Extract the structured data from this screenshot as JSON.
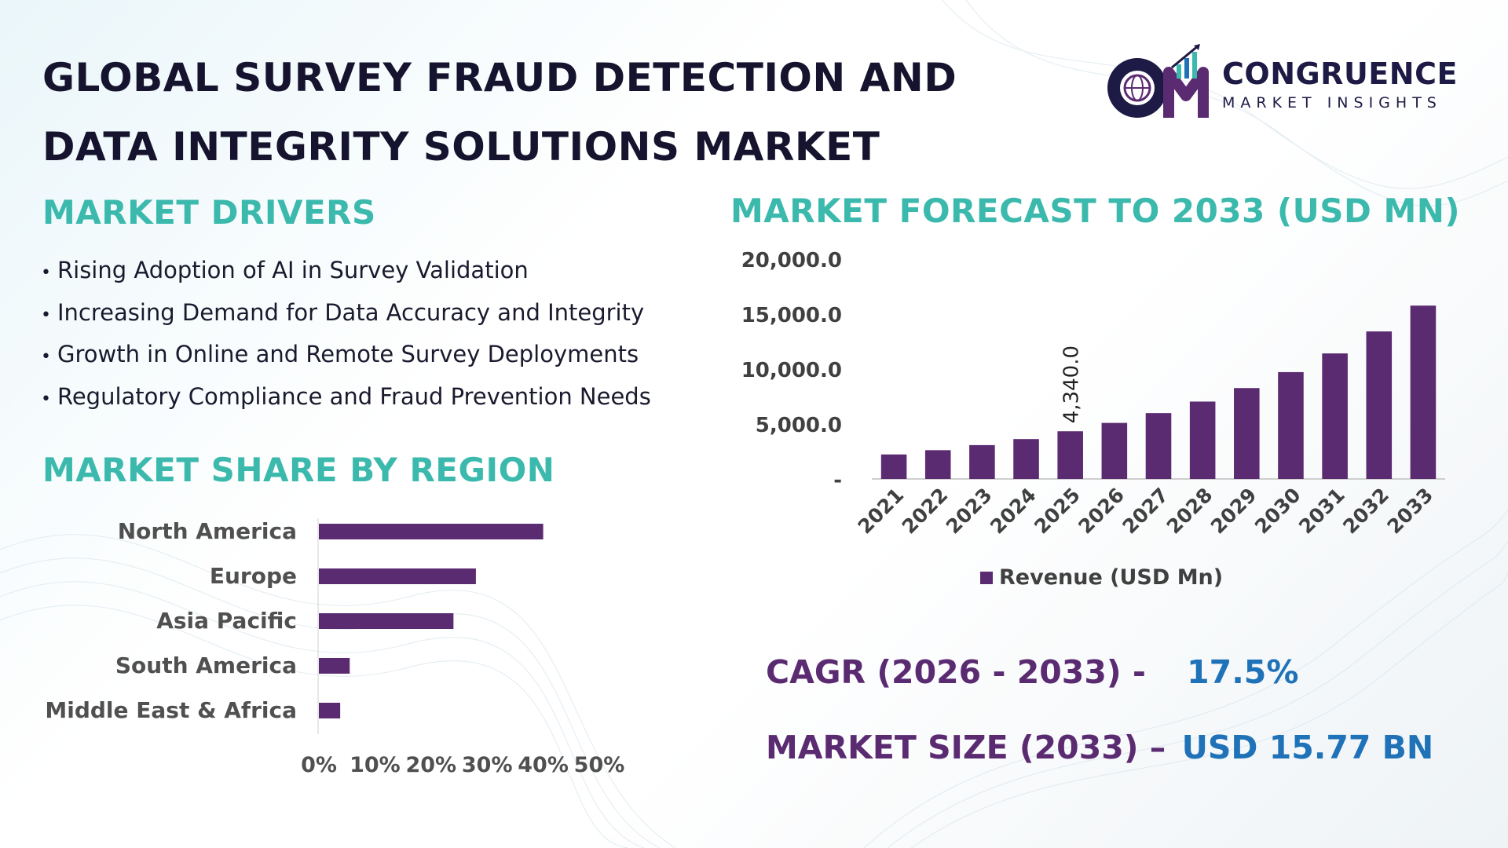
{
  "title": {
    "line1": "GLOBAL SURVEY FRAUD DETECTION AND",
    "line2": "DATA INTEGRITY SOLUTIONS MARKET"
  },
  "logo": {
    "name": "CONGRUENCE",
    "tagline": "MARKET INSIGHTS",
    "icon": "cmi-globe-logo-icon"
  },
  "drivers": {
    "heading": "MARKET DRIVERS",
    "items": [
      "Rising Adoption of AI in Survey Validation",
      "Increasing Demand for Data Accuracy and Integrity",
      "Growth in Online and Remote Survey Deployments",
      "Regulatory Compliance and Fraud Prevention Needs"
    ]
  },
  "kpis": {
    "cagr_label": "CAGR (2026 - 2033) -",
    "cagr_value": "17.5%",
    "size_label": "MARKET SIZE (2033) –",
    "size_value": "USD 15.77 BN"
  },
  "colors": {
    "bar": "#5b2b72",
    "heading": "#3cb9ad",
    "title": "#15132e",
    "kpi_value": "#1f72b8"
  },
  "chart_data": [
    {
      "type": "bar",
      "orientation": "vertical",
      "title": "MARKET FORECAST TO 2033 (USD MN)",
      "categories": [
        "2021",
        "2022",
        "2023",
        "2024",
        "2025",
        "2026",
        "2027",
        "2028",
        "2029",
        "2030",
        "2031",
        "2032",
        "2033"
      ],
      "series": [
        {
          "name": "Revenue (USD Mn)",
          "values": [
            2230,
            2620,
            3080,
            3630,
            4340,
            5100,
            5990,
            7040,
            8270,
            9720,
            11420,
            13420,
            15770
          ]
        }
      ],
      "data_labels": [
        {
          "category": "2025",
          "text": "4,340.0"
        }
      ],
      "yticks": [
        "-",
        "5,000.0",
        "10,000.0",
        "15,000.0",
        "20,000.0"
      ],
      "ylim": [
        0,
        20000
      ],
      "legend_position": "bottom",
      "grid": false
    },
    {
      "type": "bar",
      "orientation": "horizontal",
      "title": "MARKET SHARE BY REGION",
      "categories": [
        "North America",
        "Europe",
        "Asia Pacific",
        "South America",
        "Middle East & Africa"
      ],
      "values": [
        40,
        28,
        24,
        5.5,
        3.8
      ],
      "xticks": [
        "0%",
        "10%",
        "20%",
        "30%",
        "40%",
        "50%"
      ],
      "xlim": [
        0,
        50
      ],
      "grid": false
    }
  ]
}
